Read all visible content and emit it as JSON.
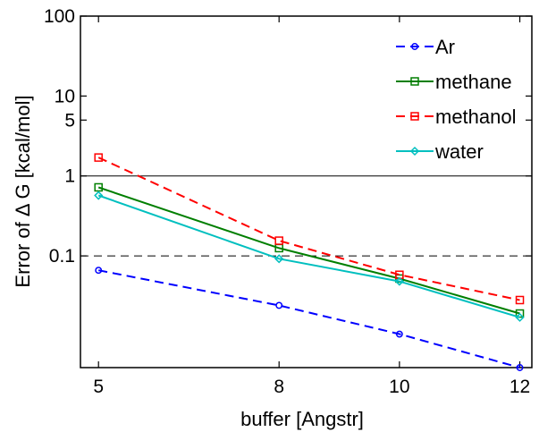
{
  "chart_data": {
    "type": "line",
    "title": "",
    "xlabel": "buffer [Angstr]",
    "ylabel": "Error of Δ G [kcal/mol]",
    "x": [
      5,
      8,
      10,
      12
    ],
    "xticks": [
      "5",
      "8",
      "10",
      "12"
    ],
    "xlim": [
      4.7,
      12.2
    ],
    "yscale": "log",
    "ylim": [
      0.004,
      100
    ],
    "yticks": [
      {
        "value": 0.1,
        "label": "0.1"
      },
      {
        "value": 1,
        "label": "1"
      },
      {
        "value": 5,
        "label": "5"
      },
      {
        "value": 10,
        "label": "10"
      },
      {
        "value": 100,
        "label": "100"
      }
    ],
    "reference_lines": [
      {
        "y": 1,
        "style": "solid",
        "color": "#000000"
      },
      {
        "y": 0.1,
        "style": "dashed",
        "color": "#000000"
      }
    ],
    "grid": false,
    "legend_position": "top-right",
    "series": [
      {
        "name": "Ar",
        "values": [
          0.066,
          0.024,
          0.0105,
          0.004
        ],
        "color": "#0000ff",
        "line": "dashed",
        "marker": "circle"
      },
      {
        "name": "methane",
        "values": [
          0.72,
          0.125,
          0.052,
          0.019
        ],
        "color": "#007f00",
        "line": "solid",
        "marker": "square"
      },
      {
        "name": "methanol",
        "values": [
          1.7,
          0.155,
          0.058,
          0.028
        ],
        "color": "#ff0000",
        "line": "dashed",
        "marker": "square"
      },
      {
        "name": "water",
        "values": [
          0.57,
          0.092,
          0.048,
          0.017
        ],
        "color": "#00bfbf",
        "line": "solid",
        "marker": "diamond"
      }
    ]
  }
}
